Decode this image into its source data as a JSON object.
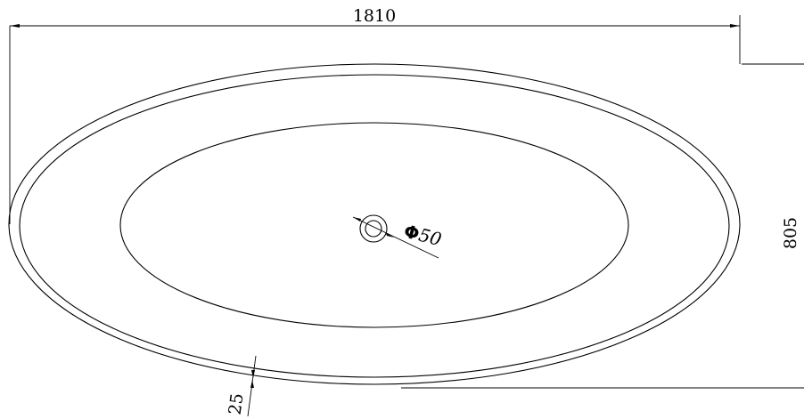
{
  "drawing": {
    "dimensions": {
      "length": "1810",
      "width": "805",
      "rim": "25",
      "drain_symbol": "Φ",
      "drain_value": "50"
    }
  }
}
